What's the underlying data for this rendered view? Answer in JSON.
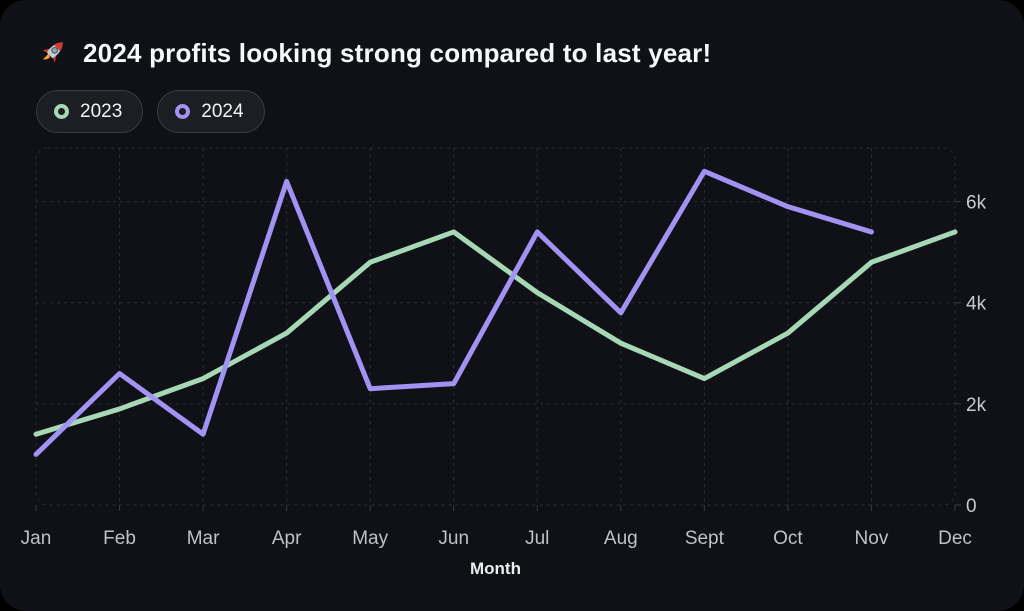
{
  "title": {
    "icon": "rocket-icon",
    "text": "2024 profits looking strong compared to last year!"
  },
  "legend": {
    "items": [
      {
        "label": "2023",
        "color": "#a6d8b6"
      },
      {
        "label": "2024",
        "color": "#a192f3"
      }
    ]
  },
  "colors": {
    "card_background": "#101117",
    "gridline": "#2c2d33",
    "series_2023": "#a6d8b6",
    "series_2024": "#a192f3"
  },
  "chart_data": {
    "type": "line",
    "x": [
      "Jan",
      "Feb",
      "Mar",
      "Apr",
      "May",
      "Jun",
      "Jul",
      "Aug",
      "Sept",
      "Oct",
      "Nov",
      "Dec"
    ],
    "series": [
      {
        "name": "2023",
        "color": "#a6d8b6",
        "values": [
          1400,
          1900,
          2500,
          3400,
          4800,
          5400,
          4200,
          3200,
          2500,
          3400,
          4800,
          5400
        ]
      },
      {
        "name": "2024",
        "color": "#a192f3",
        "values": [
          1000,
          2600,
          1400,
          6400,
          2300,
          2400,
          5400,
          3800,
          6600,
          5900,
          5400,
          null
        ]
      }
    ],
    "xlabel": "Month",
    "ylabel": "",
    "yticks": [
      {
        "value": 0,
        "label": "0"
      },
      {
        "value": 2000,
        "label": "2k"
      },
      {
        "value": 4000,
        "label": "4k"
      },
      {
        "value": 6000,
        "label": "6k"
      }
    ],
    "ylim": [
      0,
      7060
    ],
    "grid": true,
    "grid_style": "dashed",
    "legend_position": "top-left",
    "ytick_side": "right"
  }
}
